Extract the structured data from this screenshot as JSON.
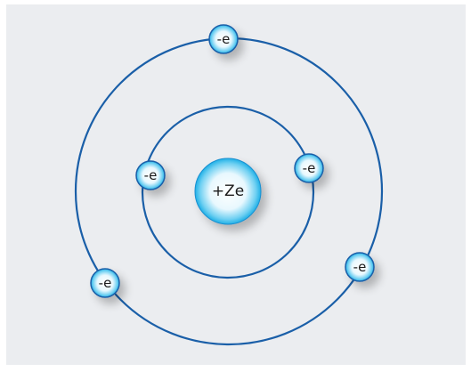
{
  "nucleus": {
    "label": "+Ze"
  },
  "electrons": [
    {
      "label": "-e"
    },
    {
      "label": "-e"
    },
    {
      "label": "-e"
    },
    {
      "label": "-e"
    },
    {
      "label": "-e"
    }
  ]
}
